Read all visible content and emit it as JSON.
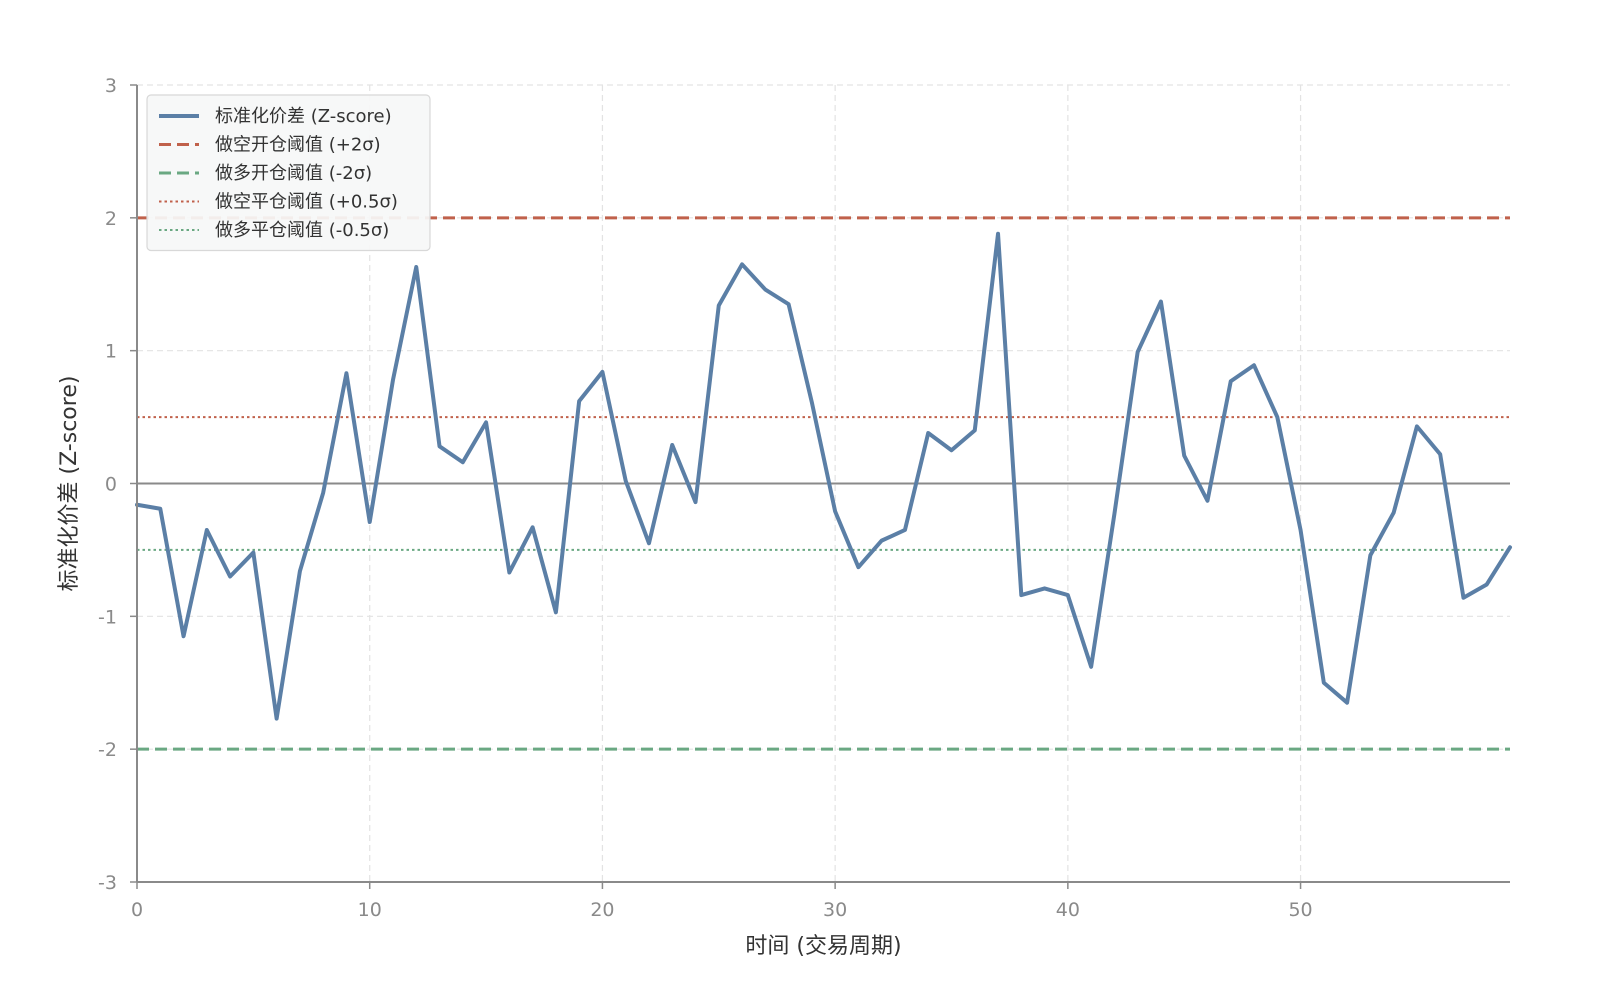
{
  "chart_data": {
    "type": "line",
    "xlabel": "时间 (交易周期)",
    "ylabel": "标准化价差 (Z-score)",
    "xlim": [
      0,
      59
    ],
    "ylim": [
      -3,
      3
    ],
    "x_ticks": [
      0,
      10,
      20,
      30,
      40,
      50
    ],
    "y_ticks": [
      -3,
      -2,
      -1,
      0,
      1,
      2,
      3
    ],
    "x_tick_labels": [
      "0",
      "10",
      "20",
      "30",
      "40",
      "50"
    ],
    "y_tick_labels": [
      "-3",
      "-2",
      "-1",
      "0",
      "1",
      "2",
      "3"
    ],
    "grid": true,
    "legend_position": "top-left",
    "zero_line": 0,
    "series": [
      {
        "name": "标准化价差 (Z-score)",
        "color": "#5b7fa6",
        "style": "solid",
        "x": [
          0,
          1,
          2,
          3,
          4,
          5,
          6,
          7,
          8,
          9,
          10,
          11,
          12,
          13,
          14,
          15,
          16,
          17,
          18,
          19,
          20,
          21,
          22,
          23,
          24,
          25,
          26,
          27,
          28,
          29,
          30,
          31,
          32,
          33,
          34,
          35,
          36,
          37,
          38,
          39,
          40,
          41,
          42,
          43,
          44,
          45,
          46,
          47,
          48,
          49,
          50,
          51,
          52,
          53,
          54,
          55,
          56,
          57,
          58,
          59
        ],
        "values": [
          -0.16,
          -0.19,
          -1.15,
          -0.35,
          -0.7,
          -0.52,
          -1.77,
          -0.66,
          -0.07,
          0.83,
          -0.29,
          0.78,
          1.63,
          0.28,
          0.16,
          0.46,
          -0.67,
          -0.33,
          -0.97,
          0.62,
          0.84,
          0.02,
          -0.45,
          0.29,
          -0.14,
          1.34,
          1.65,
          1.46,
          1.35,
          0.61,
          -0.21,
          -0.63,
          -0.43,
          -0.35,
          0.38,
          0.25,
          0.4,
          1.88,
          -0.84,
          -0.79,
          -0.84,
          -1.38,
          -0.23,
          0.99,
          1.37,
          0.21,
          -0.13,
          0.77,
          0.89,
          0.5,
          -0.35,
          -1.5,
          -1.65,
          -0.54,
          -0.22,
          0.43,
          0.22,
          -0.86,
          -0.76,
          -0.48
        ]
      },
      {
        "name": "做空开仓阈值 (+2σ)",
        "color": "#c0614b",
        "style": "dashed",
        "y": 2
      },
      {
        "name": "做多开仓阈值 (-2σ)",
        "color": "#6aa882",
        "style": "dashed",
        "y": -2
      },
      {
        "name": "做空平仓阈值 (+0.5σ)",
        "color": "#c0614b",
        "style": "dotted",
        "y": 0.5
      },
      {
        "name": "做多平仓阈值 (-0.5σ)",
        "color": "#6aa882",
        "style": "dotted",
        "y": -0.5
      }
    ]
  }
}
